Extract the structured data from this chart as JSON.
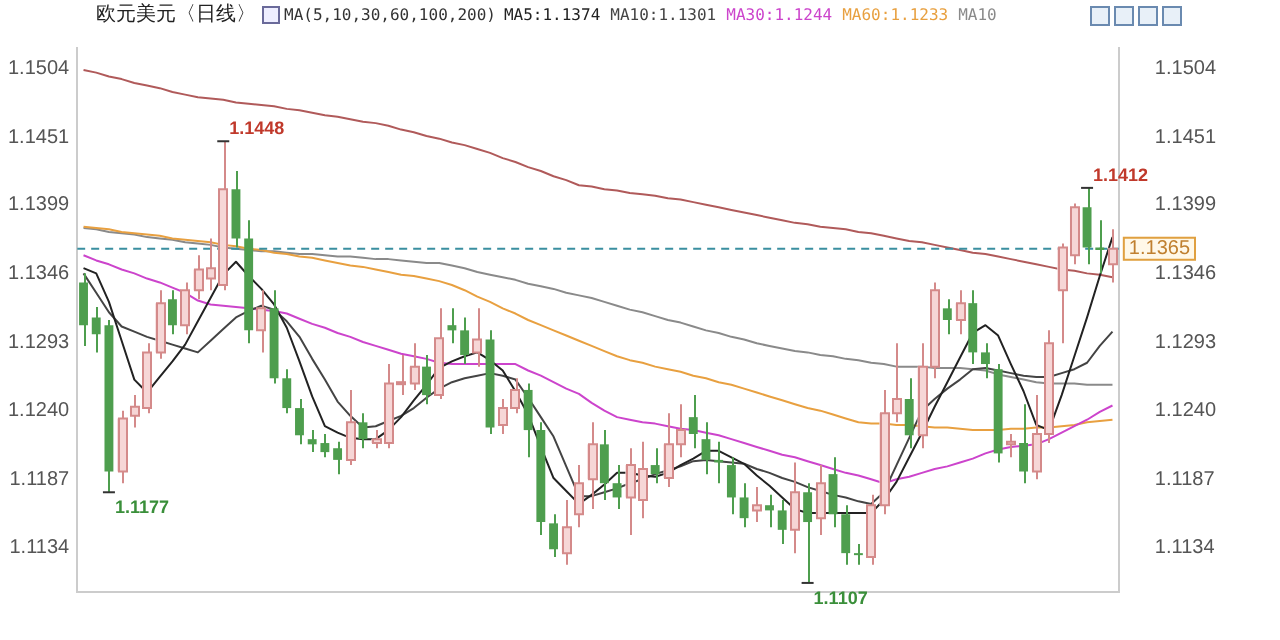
{
  "chart_data": {
    "type": "candlestick",
    "title": "欧元美元〈日线〉",
    "subtitle": "MA(5,10,30,60,100,200)",
    "categories": [
      null,
      null,
      null,
      null,
      null,
      null,
      null,
      null,
      null,
      null,
      null,
      null,
      null,
      null,
      null,
      null,
      null,
      null,
      null,
      null,
      null,
      null,
      null,
      null,
      null,
      null,
      null,
      null,
      null,
      null,
      null,
      null,
      null,
      null,
      null,
      null,
      null,
      null,
      null,
      null,
      null,
      null,
      null,
      null,
      null,
      null,
      null,
      null,
      null,
      null,
      null,
      null,
      null,
      null,
      null,
      null,
      null,
      null,
      null,
      null,
      null,
      null,
      null,
      null,
      null,
      null,
      null,
      null,
      null,
      null,
      null,
      null,
      null,
      null,
      null,
      null,
      null,
      null,
      null,
      null,
      null,
      null
    ],
    "ohlc": [
      [
        1.1339,
        1.1346,
        1.129,
        1.1306
      ],
      [
        1.1312,
        1.132,
        1.1285,
        1.1299
      ],
      [
        1.1306,
        1.131,
        1.1177,
        1.1193
      ],
      [
        1.1193,
        1.124,
        1.1184,
        1.1234
      ],
      [
        1.1236,
        1.1252,
        1.1227,
        1.1243
      ],
      [
        1.1242,
        1.1292,
        1.1238,
        1.1285
      ],
      [
        1.1285,
        1.1333,
        1.128,
        1.1323
      ],
      [
        1.1326,
        1.1333,
        1.1299,
        1.1306
      ],
      [
        1.1306,
        1.1339,
        1.1299,
        1.1333
      ],
      [
        1.1333,
        1.136,
        1.1326,
        1.1349
      ],
      [
        1.1342,
        1.1373,
        1.1333,
        1.135
      ],
      [
        1.1337,
        1.1448,
        1.1333,
        1.1411
      ],
      [
        1.1411,
        1.1425,
        1.1366,
        1.1373
      ],
      [
        1.1373,
        1.1387,
        1.1292,
        1.1302
      ],
      [
        1.1302,
        1.1333,
        1.1285,
        1.1319
      ],
      [
        1.1319,
        1.1333,
        1.1261,
        1.1265
      ],
      [
        1.1265,
        1.1272,
        1.1238,
        1.1242
      ],
      [
        1.1242,
        1.1249,
        1.1214,
        1.1221
      ],
      [
        1.1218,
        1.1225,
        1.1208,
        1.1214
      ],
      [
        1.1215,
        1.1222,
        1.1204,
        1.1208
      ],
      [
        1.1211,
        1.1216,
        1.1191,
        1.1202
      ],
      [
        1.1202,
        1.1256,
        1.1198,
        1.1231
      ],
      [
        1.1231,
        1.1238,
        1.1211,
        1.1218
      ],
      [
        1.1215,
        1.1225,
        1.1211,
        1.1218
      ],
      [
        1.1215,
        1.1276,
        1.1211,
        1.1261
      ],
      [
        1.1261,
        1.1283,
        1.1252,
        1.1262
      ],
      [
        1.1261,
        1.1292,
        1.1256,
        1.1274
      ],
      [
        1.1274,
        1.1283,
        1.1245,
        1.1252
      ],
      [
        1.1252,
        1.1319,
        1.1249,
        1.1296
      ],
      [
        1.1306,
        1.1319,
        1.1292,
        1.1302
      ],
      [
        1.1302,
        1.1312,
        1.1276,
        1.1283
      ],
      [
        1.1285,
        1.1319,
        1.1274,
        1.1295
      ],
      [
        1.1295,
        1.1302,
        1.1222,
        1.1227
      ],
      [
        1.1229,
        1.1249,
        1.1222,
        1.1242
      ],
      [
        1.1242,
        1.1265,
        1.1238,
        1.1256
      ],
      [
        1.1256,
        1.1261,
        1.1204,
        1.1225
      ],
      [
        1.1225,
        1.1231,
        1.1144,
        1.1154
      ],
      [
        1.1153,
        1.116,
        1.1127,
        1.1133
      ],
      [
        1.113,
        1.1171,
        1.1121,
        1.115
      ],
      [
        1.116,
        1.1198,
        1.115,
        1.1184
      ],
      [
        1.1187,
        1.1231,
        1.1164,
        1.1214
      ],
      [
        1.1214,
        1.1225,
        1.1171,
        1.1184
      ],
      [
        1.1184,
        1.1198,
        1.1164,
        1.1173
      ],
      [
        1.1173,
        1.1211,
        1.1144,
        1.1198
      ],
      [
        1.1171,
        1.1216,
        1.1157,
        1.1195
      ],
      [
        1.1198,
        1.1211,
        1.1184,
        1.1191
      ],
      [
        1.1188,
        1.1238,
        1.1181,
        1.1214
      ],
      [
        1.1214,
        1.1245,
        1.1204,
        1.1225
      ],
      [
        1.1235,
        1.1252,
        1.1211,
        1.1222
      ],
      [
        1.1218,
        1.1231,
        1.1191,
        1.1202
      ],
      [
        1.1202,
        1.1216,
        1.1184,
        1.12
      ],
      [
        1.1198,
        1.1204,
        1.116,
        1.1173
      ],
      [
        1.1173,
        1.1184,
        1.115,
        1.1157
      ],
      [
        1.1163,
        1.1181,
        1.1154,
        1.1167
      ],
      [
        1.1167,
        1.1175,
        1.115,
        1.1163
      ],
      [
        1.1163,
        1.1171,
        1.1137,
        1.1148
      ],
      [
        1.1148,
        1.12,
        1.113,
        1.1177
      ],
      [
        1.1177,
        1.1184,
        1.1107,
        1.1154
      ],
      [
        1.1157,
        1.1198,
        1.1144,
        1.1184
      ],
      [
        1.1191,
        1.1204,
        1.115,
        1.116
      ],
      [
        1.116,
        1.1167,
        1.1121,
        1.113
      ],
      [
        1.113,
        1.1137,
        1.1121,
        1.1129
      ],
      [
        1.1127,
        1.1175,
        1.1121,
        1.1167
      ],
      [
        1.1167,
        1.1256,
        1.116,
        1.1238
      ],
      [
        1.1238,
        1.1292,
        1.1231,
        1.1249
      ],
      [
        1.1249,
        1.1265,
        1.1211,
        1.1221
      ],
      [
        1.1221,
        1.1292,
        1.1211,
        1.1274
      ],
      [
        1.1274,
        1.1339,
        1.1265,
        1.1333
      ],
      [
        1.1319,
        1.1326,
        1.1299,
        1.131
      ],
      [
        1.131,
        1.1333,
        1.1299,
        1.1323
      ],
      [
        1.1323,
        1.1333,
        1.1276,
        1.1285
      ],
      [
        1.1285,
        1.1292,
        1.1265,
        1.1276
      ],
      [
        1.1272,
        1.1276,
        1.12,
        1.1207
      ],
      [
        1.1214,
        1.1222,
        1.1204,
        1.1216
      ],
      [
        1.1215,
        1.1245,
        1.1184,
        1.1193
      ],
      [
        1.1193,
        1.1252,
        1.1187,
        1.1222
      ],
      [
        1.1222,
        1.1302,
        1.1215,
        1.1292
      ],
      [
        1.1333,
        1.1369,
        1.1292,
        1.1366
      ],
      [
        1.136,
        1.14,
        1.1353,
        1.1397
      ],
      [
        1.1397,
        1.1412,
        1.1353,
        1.1366
      ],
      [
        1.1366,
        1.1387,
        1.1346,
        1.1364
      ],
      [
        1.1353,
        1.138,
        1.1339,
        1.1365
      ]
    ],
    "series": [
      {
        "type": "line",
        "name": "MA5:1.1374",
        "color": "#222222",
        "values": [
          1.135,
          1.1346,
          1.1324,
          1.1294,
          1.1264,
          1.1254,
          1.1266,
          1.1278,
          1.1291,
          1.1309,
          1.1327,
          1.1345,
          1.1355,
          1.1344,
          1.1334,
          1.1322,
          1.1304,
          1.1278,
          1.1251,
          1.1228,
          1.1223,
          1.1219,
          1.1218,
          1.1218,
          1.1225,
          1.1235,
          1.1248,
          1.126,
          1.1273,
          1.1278,
          1.1282,
          1.1285,
          1.1279,
          1.1271,
          1.1255,
          1.1237,
          1.1212,
          1.1188,
          1.1178,
          1.1168,
          1.1175,
          1.1183,
          1.1192,
          1.1192,
          1.119,
          1.1189,
          1.1192,
          1.1198,
          1.1203,
          1.1209,
          1.1209,
          1.1204,
          1.1199,
          1.119,
          1.1182,
          1.1173,
          1.1164,
          1.1161,
          1.1161,
          1.1161,
          1.1161,
          1.1161,
          1.1161,
          1.1171,
          1.1185,
          1.1204,
          1.1223,
          1.1243,
          1.1262,
          1.1281,
          1.13,
          1.1306,
          1.1298,
          1.1276,
          1.1255,
          1.1229,
          1.1225,
          1.1252,
          1.1282,
          1.1312,
          1.1344,
          1.1374
        ]
      },
      {
        "type": "line",
        "name": "MA10:1.1301",
        "color": "#444444",
        "values": [
          1.1346,
          1.1331,
          1.1316,
          1.1305,
          1.1301,
          1.1297,
          1.1294,
          1.1291,
          1.1288,
          1.1285,
          1.1294,
          1.1303,
          1.1312,
          1.1317,
          1.1321,
          1.1318,
          1.1309,
          1.1297,
          1.128,
          1.1264,
          1.1247,
          1.1236,
          1.1227,
          1.1228,
          1.1232,
          1.1236,
          1.1242,
          1.125,
          1.1257,
          1.1262,
          1.1265,
          1.1267,
          1.1269,
          1.1267,
          1.1264,
          1.125,
          1.1235,
          1.122,
          1.1197,
          1.1174,
          1.1174,
          1.1177,
          1.118,
          1.1184,
          1.1187,
          1.1191,
          1.1194,
          1.1197,
          1.1201,
          1.1202,
          1.1201,
          1.12,
          1.1199,
          1.1195,
          1.1192,
          1.1188,
          1.1185,
          1.1181,
          1.1178,
          1.1175,
          1.1173,
          1.117,
          1.1168,
          1.1177,
          1.1198,
          1.1219,
          1.124,
          1.1249,
          1.1257,
          1.1264,
          1.1272,
          1.1273,
          1.1271,
          1.1269,
          1.1267,
          1.1266,
          1.1266,
          1.1269,
          1.1272,
          1.1277,
          1.129,
          1.1301
        ]
      },
      {
        "type": "line",
        "name": "MA30:1.1244",
        "color": "#cc44cc",
        "values": [
          1.136,
          1.1356,
          1.1353,
          1.1349,
          1.1346,
          1.1342,
          1.1339,
          1.1335,
          1.1331,
          1.1325,
          1.1322,
          1.1321,
          1.132,
          1.1319,
          1.1318,
          1.1317,
          1.1315,
          1.1311,
          1.1307,
          1.1304,
          1.13,
          1.1297,
          1.1293,
          1.129,
          1.1287,
          1.1284,
          1.1282,
          1.128,
          1.1277,
          1.1276,
          1.1276,
          1.1276,
          1.1276,
          1.1276,
          1.1276,
          1.1271,
          1.1267,
          1.1262,
          1.1257,
          1.1253,
          1.1246,
          1.124,
          1.1235,
          1.1233,
          1.1231,
          1.123,
          1.1228,
          1.1226,
          1.1225,
          1.1223,
          1.1221,
          1.1218,
          1.1215,
          1.1212,
          1.1209,
          1.1206,
          1.1204,
          1.1201,
          1.1198,
          1.1195,
          1.1192,
          1.119,
          1.1187,
          1.1184,
          1.1187,
          1.1189,
          1.1192,
          1.1195,
          1.1197,
          1.12,
          1.1203,
          1.1207,
          1.121,
          1.1212,
          1.1213,
          1.1214,
          1.1218,
          1.1223,
          1.1228,
          1.1233,
          1.1239,
          1.1244
        ]
      },
      {
        "type": "line",
        "name": "MA60:1.1233",
        "color": "#e8a040",
        "values": [
          1.1382,
          1.1381,
          1.138,
          1.1378,
          1.1377,
          1.1376,
          1.1375,
          1.1373,
          1.1372,
          1.1371,
          1.137,
          1.1368,
          1.1367,
          1.1365,
          1.1364,
          1.1362,
          1.1361,
          1.1359,
          1.1358,
          1.1356,
          1.1354,
          1.1352,
          1.1351,
          1.1349,
          1.1347,
          1.1345,
          1.1344,
          1.1342,
          1.134,
          1.1337,
          1.1333,
          1.1328,
          1.1324,
          1.1319,
          1.1315,
          1.131,
          1.1306,
          1.1302,
          1.1298,
          1.1294,
          1.129,
          1.1286,
          1.1282,
          1.1279,
          1.1277,
          1.1274,
          1.1272,
          1.127,
          1.1267,
          1.1265,
          1.1262,
          1.126,
          1.1257,
          1.1254,
          1.1251,
          1.1248,
          1.1245,
          1.1242,
          1.124,
          1.1237,
          1.1234,
          1.1231,
          1.123,
          1.123,
          1.1229,
          1.1229,
          1.1228,
          1.1227,
          1.1227,
          1.1226,
          1.1225,
          1.1225,
          1.1225,
          1.1226,
          1.1226,
          1.1227,
          1.1227,
          1.1228,
          1.1229,
          1.1231,
          1.1232,
          1.1233
        ]
      },
      {
        "type": "line",
        "name": "MA10",
        "color": "#8a8a8a",
        "values": [
          1.1381,
          1.138,
          1.1378,
          1.1377,
          1.1376,
          1.1374,
          1.1373,
          1.1372,
          1.137,
          1.1369,
          1.1368,
          1.1366,
          1.1365,
          1.1364,
          1.1363,
          1.1363,
          1.1362,
          1.1361,
          1.1361,
          1.136,
          1.1359,
          1.1359,
          1.1358,
          1.1357,
          1.1357,
          1.1356,
          1.1355,
          1.1354,
          1.1354,
          1.1352,
          1.135,
          1.1347,
          1.1345,
          1.1343,
          1.1341,
          1.1338,
          1.1336,
          1.1334,
          1.1331,
          1.1329,
          1.1327,
          1.1324,
          1.1321,
          1.1318,
          1.1316,
          1.1313,
          1.131,
          1.1308,
          1.1305,
          1.1302,
          1.13,
          1.1297,
          1.1295,
          1.1292,
          1.129,
          1.1288,
          1.1286,
          1.1285,
          1.1283,
          1.1282,
          1.128,
          1.1279,
          1.1277,
          1.1276,
          1.1274,
          1.1274,
          1.1274,
          1.1273,
          1.1273,
          1.1273,
          1.1272,
          1.1271,
          1.1268,
          1.1266,
          1.1264,
          1.1262,
          1.1261,
          1.1261,
          1.1261,
          1.126,
          1.126,
          1.126
        ]
      },
      {
        "type": "line",
        "color": "#b05a5a",
        "values": [
          1.1503,
          1.1501,
          1.1498,
          1.1496,
          1.1493,
          1.1491,
          1.1489,
          1.1486,
          1.1484,
          1.1482,
          1.1481,
          1.148,
          1.1478,
          1.1477,
          1.1476,
          1.1475,
          1.1473,
          1.1472,
          1.147,
          1.1468,
          1.1467,
          1.1465,
          1.1463,
          1.1462,
          1.146,
          1.1457,
          1.1455,
          1.1452,
          1.145,
          1.1447,
          1.1445,
          1.1442,
          1.1439,
          1.1435,
          1.1432,
          1.1428,
          1.1425,
          1.1421,
          1.1418,
          1.1414,
          1.1413,
          1.1411,
          1.141,
          1.1408,
          1.1407,
          1.1406,
          1.1404,
          1.1403,
          1.1401,
          1.1399,
          1.1397,
          1.1395,
          1.1393,
          1.1391,
          1.1389,
          1.1387,
          1.1385,
          1.1384,
          1.1382,
          1.1381,
          1.138,
          1.1378,
          1.1377,
          1.1375,
          1.1373,
          1.1371,
          1.137,
          1.1368,
          1.1366,
          1.1364,
          1.1362,
          1.1361,
          1.1359,
          1.1357,
          1.1355,
          1.1353,
          1.1351,
          1.1349,
          1.1348,
          1.1346,
          1.1345,
          1.1343
        ]
      }
    ],
    "ylim": [
      1.11,
      1.152
    ],
    "yticks": [
      1.1134,
      1.1187,
      {
        "value": 1.124,
        "label": "1.1240"
      },
      1.1293,
      1.1346,
      1.1399,
      1.1451,
      1.1504
    ],
    "y2lim": [
      1.11,
      1.152
    ],
    "y2ticks": [
      1.1134,
      1.1187,
      {
        "value": 1.124,
        "label": "1.1240"
      },
      1.1293,
      1.1346,
      1.1399,
      1.1451,
      1.1504
    ],
    "tick_labels": "y",
    "grid": false,
    "ref_lines": [
      {
        "axis": "y2",
        "value": 1.1365,
        "label": "1.1365",
        "color": "#3a8fa0",
        "line_style": "dashed"
      }
    ],
    "annotations": [
      "1.1448",
      "1.1412",
      "1.1177",
      "1.1107"
    ]
  }
}
